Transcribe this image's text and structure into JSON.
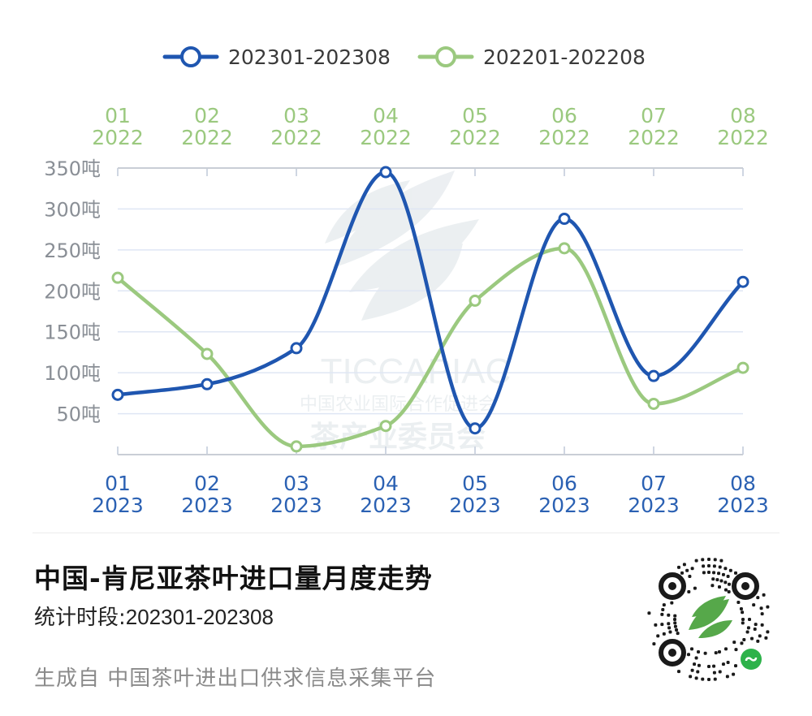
{
  "chart_data": {
    "type": "line",
    "categories": [
      "01",
      "02",
      "03",
      "04",
      "05",
      "06",
      "07",
      "08"
    ],
    "x_top_year": "2022",
    "x_bottom_year": "2023",
    "y_ticks": [
      "50吨",
      "100吨",
      "150吨",
      "200吨",
      "250吨",
      "300吨",
      "350吨"
    ],
    "y_tick_values": [
      50,
      100,
      150,
      200,
      250,
      300,
      350
    ],
    "ylim": [
      0,
      350
    ],
    "unit": "吨",
    "legend_position": "top",
    "grid": true,
    "series": [
      {
        "name": "202301-202308",
        "color": "#1f56b0",
        "values": [
          73,
          86,
          130,
          345,
          32,
          288,
          96,
          211
        ]
      },
      {
        "name": "202201-202208",
        "color": "#9bc97f",
        "values": [
          216,
          123,
          10,
          35,
          188,
          252,
          62,
          106
        ]
      }
    ]
  },
  "watermark": {
    "latin": "TICCAPIAC",
    "cn_line1": "中国农业国际合作促进会",
    "cn_line2": "茶产业委员会"
  },
  "title": "中国-肯尼亚茶叶进口量月度走势",
  "period_label": "统计时段:",
  "period_value": "202301-202308",
  "footer": "生成自  中国茶叶进出口供求信息采集平台",
  "colors": {
    "accent_blue": "#1f56b0",
    "accent_green": "#9bc97f",
    "bottom_axis_label": "#2b61b3",
    "qr_center": "#56a84a"
  },
  "qr_icon": "mini-program-qr-icon"
}
